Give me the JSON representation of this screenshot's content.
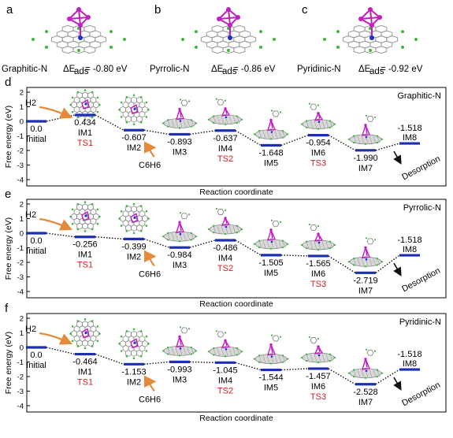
{
  "top": [
    {
      "letter": "a",
      "label": "Graphitic-N",
      "energy": "ΔE",
      "sub": "ads",
      "value": " = -0.80 eV"
    },
    {
      "letter": "b",
      "label": "Pyrrolic-N",
      "energy": "ΔE",
      "sub": "ads",
      "value": " = -0.86 eV"
    },
    {
      "letter": "c",
      "label": "Pyridinic-N",
      "energy": "ΔE",
      "sub": "ads",
      "value": " = -0.92 eV"
    }
  ],
  "colors": {
    "level": "#1c2fae",
    "connector": "#111111",
    "ts": "#d42020",
    "arrow": "#e58a3a",
    "pt": "#c21fc2",
    "carbon": "#8a8a8a",
    "n": "#1c2fd0",
    "h": "#3db83d"
  },
  "chart_data": [
    {
      "type": "line",
      "letter": "d",
      "title": "Graphitic-N",
      "ylabel": "Free energy (eV)",
      "xlabel": "Reaction coordinate",
      "ylim": [
        -4,
        2
      ],
      "yticks": [
        "-4",
        "-3",
        "-2",
        "-1",
        "0",
        "1",
        "2"
      ],
      "states": [
        "Initial",
        "IM1",
        "IM2",
        "IM3",
        "IM4",
        "IM5",
        "IM6",
        "IM7",
        "IM8"
      ],
      "value_labels": [
        "0.0",
        "0.434",
        "-0.607",
        "-0.893",
        "-0.637",
        "-1.648",
        "-0.954",
        "-1.990",
        "-1.518"
      ],
      "values": [
        0.0,
        0.434,
        -0.607,
        -0.893,
        -0.637,
        -1.648,
        -0.954,
        -1.99,
        -1.518
      ],
      "ts_labels": [
        "TS1",
        "TS2",
        "TS3"
      ],
      "reactants": [
        "H2",
        "C6H6"
      ],
      "desorption": "Desorption"
    },
    {
      "type": "line",
      "letter": "e",
      "title": "Pyrrolic-N",
      "ylabel": "Free energy (eV)",
      "xlabel": "Reaction coordinate",
      "ylim": [
        -4,
        2
      ],
      "yticks": [
        "-4",
        "-3",
        "-2",
        "-1",
        "0",
        "1",
        "2"
      ],
      "states": [
        "Initial",
        "IM1",
        "IM2",
        "IM3",
        "IM4",
        "IM5",
        "IM6",
        "IM7",
        "IM8"
      ],
      "value_labels": [
        "0.0",
        "-0.256",
        "-0.399",
        "-0.984",
        "-0.486",
        "-1.505",
        "-1.565",
        "-2.719",
        "-1.518"
      ],
      "values": [
        0.0,
        -0.256,
        -0.399,
        -0.984,
        -0.486,
        -1.505,
        -1.565,
        -2.719,
        -1.518
      ],
      "ts_labels": [
        "TS1",
        "TS2",
        "TS3"
      ],
      "reactants": [
        "H2",
        "C6H6"
      ],
      "desorption": "Desorption"
    },
    {
      "type": "line",
      "letter": "f",
      "title": "Pyridinic-N",
      "ylabel": "Free energy (eV)",
      "xlabel": "Reaction coordinate",
      "ylim": [
        -4,
        2
      ],
      "yticks": [
        "-4",
        "-3",
        "-2",
        "-1",
        "0",
        "1",
        "2"
      ],
      "states": [
        "Initial",
        "IM1",
        "IM2",
        "IM3",
        "IM4",
        "IM5",
        "IM6",
        "IM7",
        "IM8"
      ],
      "value_labels": [
        "0.0",
        "-0.464",
        "-1.153",
        "-0.993",
        "-1.045",
        "-1.544",
        "-1.457",
        "-2.528",
        "-1.518"
      ],
      "values": [
        0.0,
        -0.464,
        -1.153,
        -0.993,
        -1.045,
        -1.544,
        -1.457,
        -2.528,
        -1.518
      ],
      "ts_labels": [
        "TS1",
        "TS2",
        "TS3"
      ],
      "reactants": [
        "H2",
        "C6H6"
      ],
      "desorption": "Desorption"
    }
  ]
}
